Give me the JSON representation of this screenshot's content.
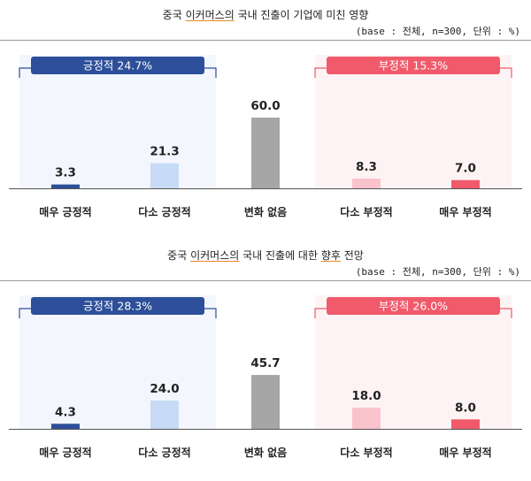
{
  "chart_data": [
    {
      "type": "bar",
      "title_parts": [
        "중국 ",
        "이커머스의",
        " 국내 진출이 기업에 미친 영향"
      ],
      "base_note": "(base : 전체, n=300, 단위 : %)",
      "categories": [
        "매우 긍정적",
        "다소 긍정적",
        "변화 없음",
        "다소 부정적",
        "매우 부정적"
      ],
      "values": [
        3.3,
        21.3,
        60.0,
        8.3,
        7.0
      ],
      "value_labels": [
        "3.3",
        "21.3",
        "60.0",
        "8.3",
        "7.0"
      ],
      "ylim": [
        0,
        60
      ],
      "groups": [
        {
          "label": "긍정적 24.7%",
          "color": "#2d4f9a",
          "bg": "#f3f6fc"
        },
        {
          "label": "부정적 15.3%",
          "color": "#f05a6b",
          "bg": "#fdf3f4"
        }
      ],
      "colors": [
        "#2d4f9a",
        "#c7dbf6",
        "#a6a6a6",
        "#f9c3cb",
        "#f05a6b"
      ]
    },
    {
      "type": "bar",
      "title_parts": [
        "중국 ",
        "이커머스의",
        " 국내 진출에 대한 ",
        "향후",
        " 전망"
      ],
      "base_note": "(base : 전체, n=300, 단위 : %)",
      "categories": [
        "매우 긍정적",
        "다소 긍정적",
        "변화 없음",
        "다소 부정적",
        "매우 부정적"
      ],
      "values": [
        4.3,
        24.0,
        45.7,
        18.0,
        8.0
      ],
      "value_labels": [
        "4.3",
        "24.0",
        "45.7",
        "18.0",
        "8.0"
      ],
      "ylim": [
        0,
        60
      ],
      "groups": [
        {
          "label": "긍정적 28.3%",
          "color": "#2d4f9a",
          "bg": "#f3f6fc"
        },
        {
          "label": "부정적 26.0%",
          "color": "#f05a6b",
          "bg": "#fdf3f4"
        }
      ],
      "colors": [
        "#2d4f9a",
        "#c7dbf6",
        "#a6a6a6",
        "#f9c3cb",
        "#f05a6b"
      ]
    }
  ]
}
